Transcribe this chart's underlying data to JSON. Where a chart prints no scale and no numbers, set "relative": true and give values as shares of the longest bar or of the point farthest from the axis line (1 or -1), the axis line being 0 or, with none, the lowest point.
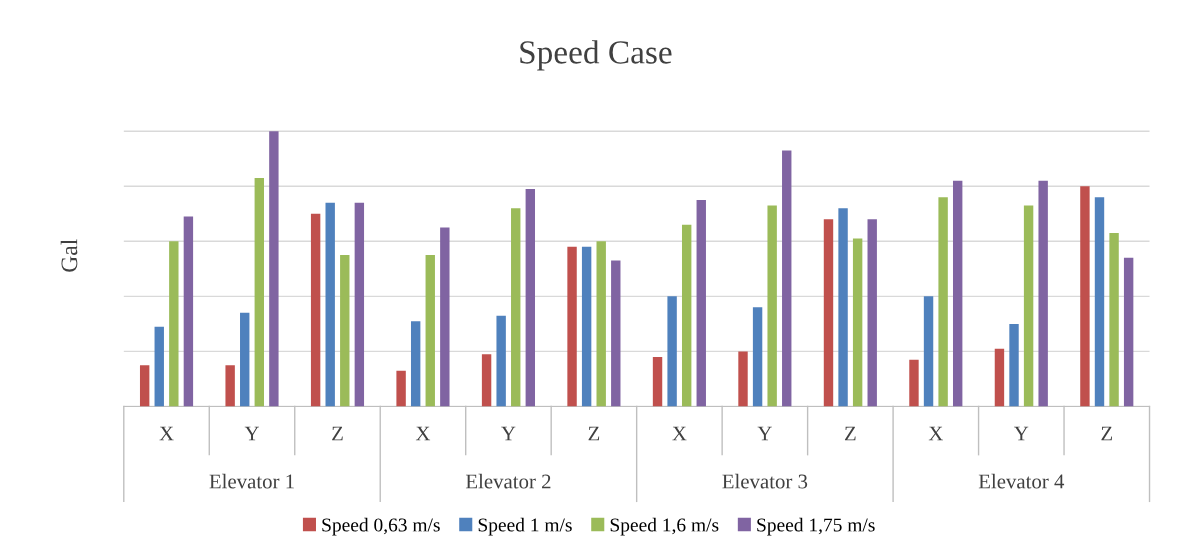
{
  "chart_data": {
    "type": "bar",
    "title": "Speed Case",
    "ylabel": "Gal",
    "relative": true,
    "grid": "y",
    "legend": "bottom",
    "categories": [
      "X",
      "Y",
      "Z",
      "X",
      "Y",
      "Z",
      "X",
      "Y",
      "Z",
      "X",
      "Y",
      "Z"
    ],
    "annotations": [
      "Elevator 1",
      "Elevator 2",
      "Elevator 3",
      "Elevator 4"
    ],
    "series": [
      {
        "name": "Speed 0,63 m/s",
        "color": "#c0504d",
        "values": [
          0.15,
          0.15,
          0.7,
          0.13,
          0.19,
          0.58,
          0.18,
          0.2,
          0.68,
          0.17,
          0.21,
          0.8
        ]
      },
      {
        "name": "Speed 1 m/s",
        "color": "#4f81bd",
        "values": [
          0.29,
          0.34,
          0.74,
          0.31,
          0.33,
          0.58,
          0.4,
          0.36,
          0.72,
          0.4,
          0.3,
          0.76
        ]
      },
      {
        "name": "Speed 1,6 m/s",
        "color": "#9bbb59",
        "values": [
          0.6,
          0.83,
          0.55,
          0.55,
          0.72,
          0.6,
          0.66,
          0.73,
          0.61,
          0.76,
          0.73,
          0.63
        ]
      },
      {
        "name": "Speed 1,75 m/s",
        "color": "#8064a2",
        "values": [
          0.69,
          1,
          0.74,
          0.65,
          0.79,
          0.53,
          0.75,
          0.93,
          0.68,
          0.82,
          0.82,
          0.54
        ]
      }
    ]
  }
}
